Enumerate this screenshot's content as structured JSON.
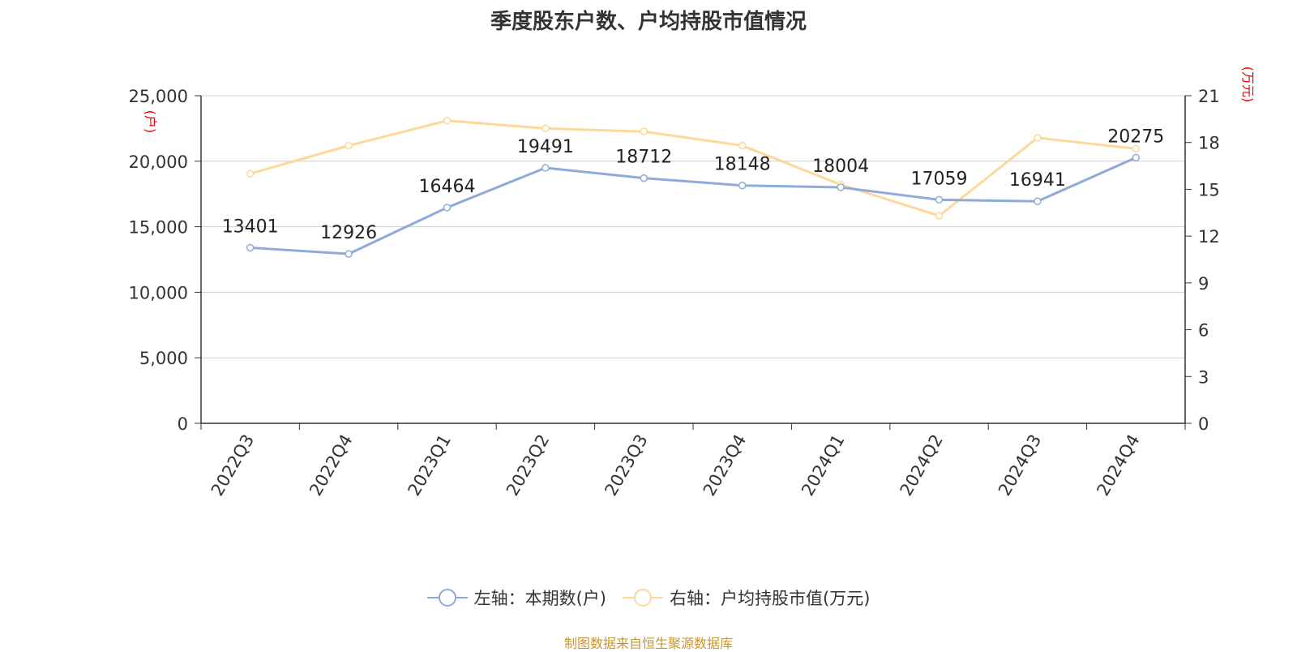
{
  "source_note": "制图数据来自恒生聚源数据库",
  "chart_data": {
    "type": "line",
    "title": "季度股东户数、户均持股市值情况",
    "categories": [
      "2022Q3",
      "2022Q4",
      "2023Q1",
      "2023Q2",
      "2023Q3",
      "2023Q4",
      "2024Q1",
      "2024Q2",
      "2024Q3",
      "2024Q4"
    ],
    "y_left": {
      "unit_label": "(户)",
      "range": [
        0,
        25000
      ],
      "ticks": [
        0,
        5000,
        10000,
        15000,
        20000,
        25000
      ],
      "tick_labels": [
        "0",
        "5,000",
        "10,000",
        "15,000",
        "20,000",
        "25,000"
      ]
    },
    "y_right": {
      "unit_label": "(万元)",
      "range": [
        0,
        21
      ],
      "ticks": [
        0,
        3,
        6,
        9,
        12,
        15,
        18,
        21
      ],
      "tick_labels": [
        "0",
        "3",
        "6",
        "9",
        "12",
        "15",
        "18",
        "21"
      ]
    },
    "grid": true,
    "legend_position": "bottom",
    "series": [
      {
        "name": "左轴：本期数(户)",
        "axis": "left",
        "color": "#8eaadb",
        "show_labels": true,
        "values": [
          13401,
          12926,
          16464,
          19491,
          18712,
          18148,
          18004,
          17059,
          16941,
          20275
        ]
      },
      {
        "name": "右轴：户均持股市值(万元)",
        "axis": "right",
        "color": "#fdd89a",
        "show_labels": false,
        "values": [
          16.0,
          17.8,
          19.4,
          18.9,
          18.7,
          17.8,
          15.3,
          13.3,
          18.3,
          17.6
        ]
      }
    ]
  }
}
